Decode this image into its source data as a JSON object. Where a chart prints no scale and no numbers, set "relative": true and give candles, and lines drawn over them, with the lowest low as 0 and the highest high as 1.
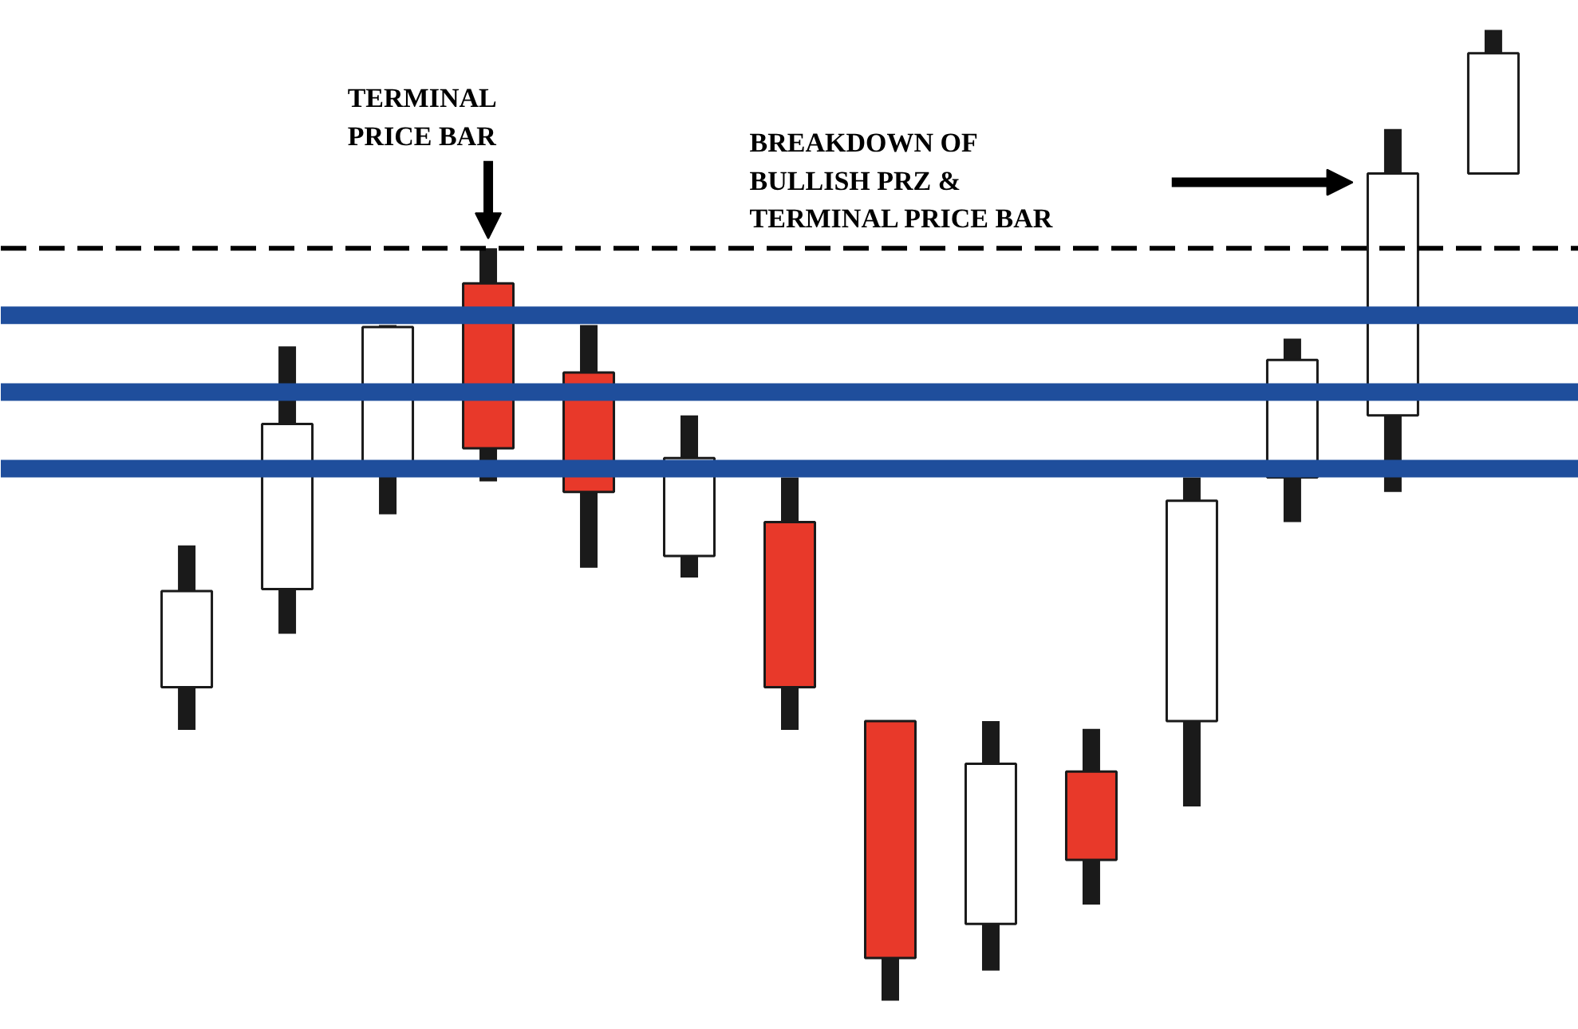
{
  "chart_data": {
    "type": "candlestick",
    "relative": true,
    "categories": [
      null,
      null,
      null,
      null,
      null,
      null,
      null,
      null,
      null,
      null,
      null,
      null,
      null,
      null
    ],
    "ohlc": [
      [
        0.323,
        0.469,
        0.279,
        0.422
      ],
      [
        0.424,
        0.674,
        0.378,
        0.594
      ],
      [
        0.546,
        0.696,
        0.501,
        0.694
      ],
      [
        0.739,
        0.775,
        0.535,
        0.569
      ],
      [
        0.647,
        0.696,
        0.446,
        0.524
      ],
      [
        0.458,
        0.603,
        0.436,
        0.559
      ],
      [
        0.493,
        0.539,
        0.279,
        0.323
      ],
      [
        0.288,
        0.288,
        0.0,
        0.044
      ],
      [
        0.079,
        0.288,
        0.031,
        0.244
      ],
      [
        0.236,
        0.28,
        0.099,
        0.145
      ],
      [
        0.288,
        0.539,
        0.2,
        0.515
      ],
      [
        0.539,
        0.682,
        0.493,
        0.66
      ],
      [
        0.603,
        0.898,
        0.524,
        0.852
      ],
      [
        0.852,
        1.0,
        0.852,
        0.976
      ]
    ],
    "colors": [
      "#ffffff",
      "#ffffff",
      "#ffffff",
      "#e8392a",
      "#e8392a",
      "#ffffff",
      "#e8392a",
      "#e8392a",
      "#ffffff",
      "#e8392a",
      "#ffffff",
      "#ffffff",
      "#ffffff",
      "#ffffff"
    ],
    "ref_lines": [
      {
        "axis": "y",
        "value": 0.706,
        "label": null,
        "color": "#1f4e9c",
        "line_style": "solid"
      },
      {
        "axis": "y",
        "value": 0.627,
        "label": null,
        "color": "#1f4e9c",
        "line_style": "solid"
      },
      {
        "axis": "y",
        "value": 0.548,
        "label": null,
        "color": "#1f4e9c",
        "line_style": "solid"
      },
      {
        "axis": "y",
        "value": 0.775,
        "label": null,
        "color": "#000000",
        "line_style": "dashed"
      }
    ],
    "annotations": [
      "TERMINAL\nPRICE BAR",
      "BREAKDOWN OF\nBULLISH PRZ &\nTERMINAL PRICE BAR"
    ],
    "grid": false
  }
}
